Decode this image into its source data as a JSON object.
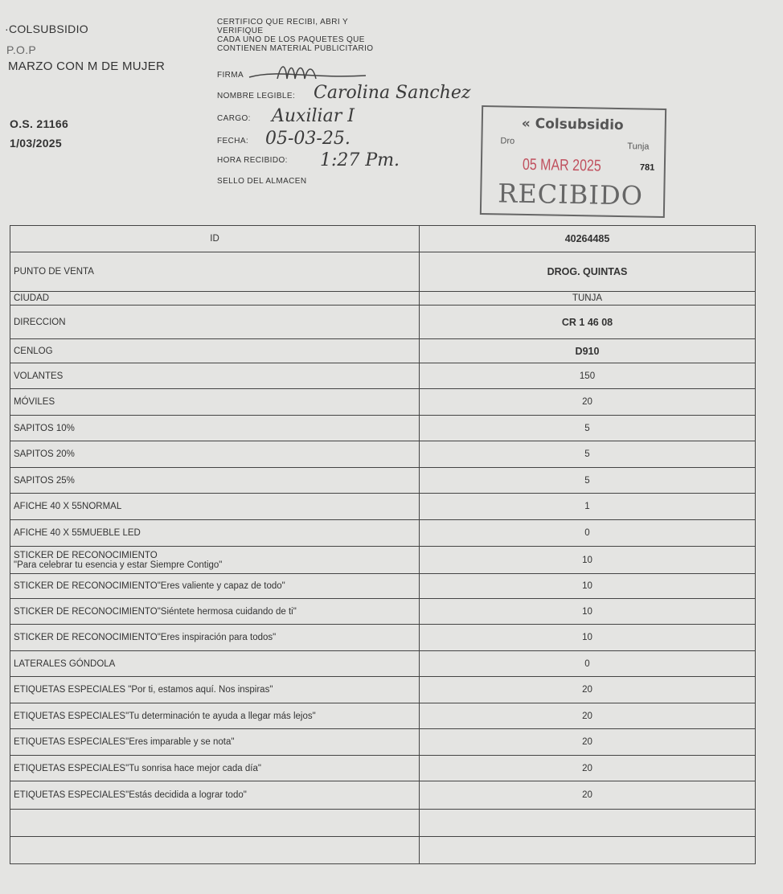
{
  "header_left": {
    "org": "·COLSUBSIDIO",
    "type": "P.O.P",
    "campaign": "MARZO CON M DE MUJER",
    "os": "O.S. 21166",
    "date": "1/03/2025"
  },
  "certificate": {
    "line1": "CERTIFICO QUE RECIBI, ABRI Y",
    "line2": "VERIFIQUE",
    "line3": "CADA  UNO DE LOS PAQUETES QUE",
    "line4": "CONTIENEN MATERIAL PUBLICITARIO",
    "firma_label": "FIRMA",
    "nombre_label": "NOMBRE LEGIBLE:",
    "nombre_value": "Carolina Sanchez",
    "cargo_label": "CARGO:",
    "cargo_value": "Auxiliar I",
    "fecha_label": "FECHA:",
    "fecha_value": "05-03-25.",
    "hora_label": "HORA RECIBIDO:",
    "hora_value": "1:27 Pm.",
    "sello_label": "SELLO DEL ALMACEN"
  },
  "stamp": {
    "brand": "Colsubsidio",
    "left": "Dro",
    "city": "Tunja",
    "date": "05 MAR 2025",
    "text": "RECIBIDO",
    "number": "781",
    "date_color": "#c0505e"
  },
  "table": {
    "rows": [
      {
        "label": "ID",
        "value": "40264485"
      },
      {
        "label": "PUNTO DE VENTA",
        "value": "DROG. QUINTAS"
      },
      {
        "label": "CIUDAD",
        "value": "TUNJA"
      },
      {
        "label": "DIRECCION",
        "value": "CR 1 46 08"
      },
      {
        "label": "CENLOG",
        "value": "D910"
      },
      {
        "label": "VOLANTES",
        "value": "150"
      },
      {
        "label": "MÓVILES",
        "value": "20"
      },
      {
        "label": "SAPITOS 10%",
        "value": "5"
      },
      {
        "label": "SAPITOS 20%",
        "value": "5"
      },
      {
        "label": "SAPITOS 25%",
        "value": "5"
      },
      {
        "label": "AFICHE 40 X 55NORMAL",
        "value": "1"
      },
      {
        "label": "AFICHE 40 X 55MUEBLE LED",
        "value": "0"
      },
      {
        "label": "STICKER DE RECONOCIMIENTO",
        "label2": "\"Para celebrar tu esencia y estar Siempre Contigo\"",
        "value": "10"
      },
      {
        "label": "STICKER DE RECONOCIMIENTO\"Eres valiente y capaz de todo\"",
        "value": "10"
      },
      {
        "label": "STICKER DE RECONOCIMIENTO\"Siéntete hermosa cuidando de ti\"",
        "value": "10"
      },
      {
        "label": "STICKER DE RECONOCIMIENTO\"Eres inspiración para todos\"",
        "value": "10"
      },
      {
        "label": "LATERALES GÓNDOLA",
        "value": "0"
      },
      {
        "label": "ETIQUETAS ESPECIALES \"Por ti, estamos aquí. Nos inspiras\"",
        "value": "20"
      },
      {
        "label": "ETIQUETAS ESPECIALES\"Tu determinación te ayuda a llegar más lejos\"",
        "value": "20"
      },
      {
        "label": "ETIQUETAS ESPECIALES\"Eres imparable y se nota\"",
        "value": "20"
      },
      {
        "label": "ETIQUETAS ESPECIALES\"Tu sonrisa hace mejor cada día\"",
        "value": "20"
      },
      {
        "label": "ETIQUETAS ESPECIALES\"Estás decidida a lograr todo\"",
        "value": "20"
      }
    ]
  }
}
